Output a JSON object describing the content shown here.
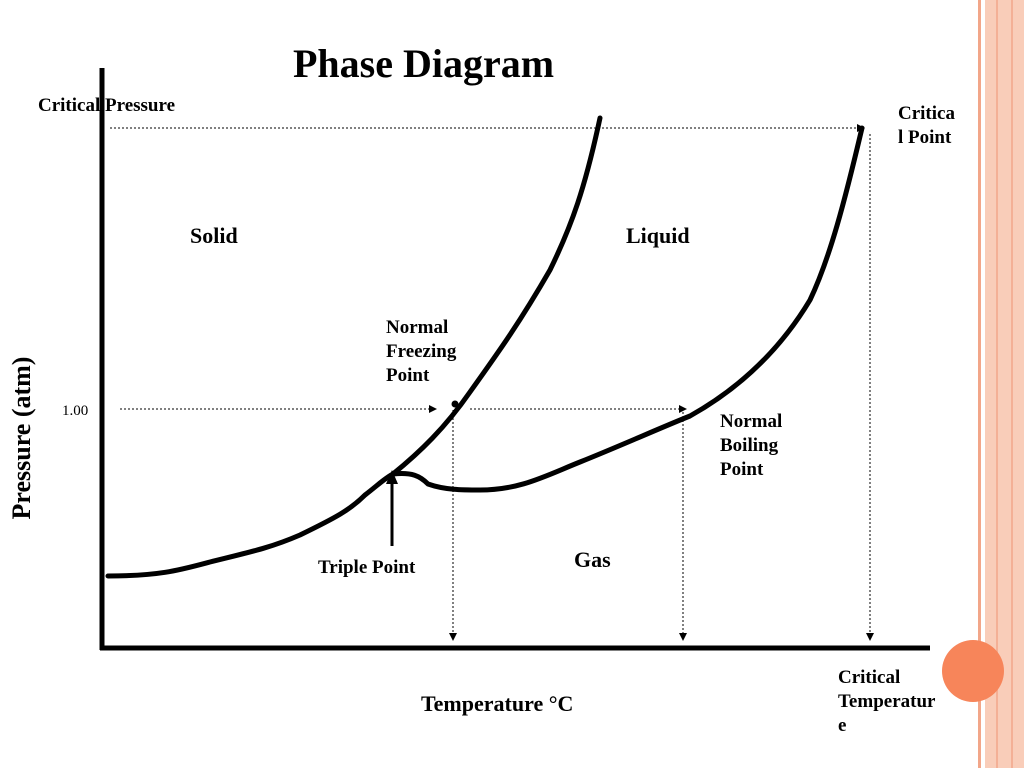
{
  "slide": {
    "title": "Phase Diagram",
    "colors": {
      "stripe": "#f9c9b4",
      "stripe_dark": "#f2a689",
      "accent_circle": "#f7855a"
    }
  },
  "axes": {
    "y_label": "Pressure (atm)",
    "x_label": "Temperature °C",
    "y_tick": "1.00"
  },
  "labels": {
    "critical_pressure": "Critical Pressure",
    "critical_point": "Critica\nl Point",
    "solid": "Solid",
    "liquid": "Liquid",
    "gas": "Gas",
    "normal_freezing_point": "Normal\nFreezing\nPoint",
    "normal_boiling_point": "Normal\nBoiling\nPoint",
    "triple_point": "Triple Point",
    "critical_temperature": "Critical\nTemperatur\ne"
  }
}
